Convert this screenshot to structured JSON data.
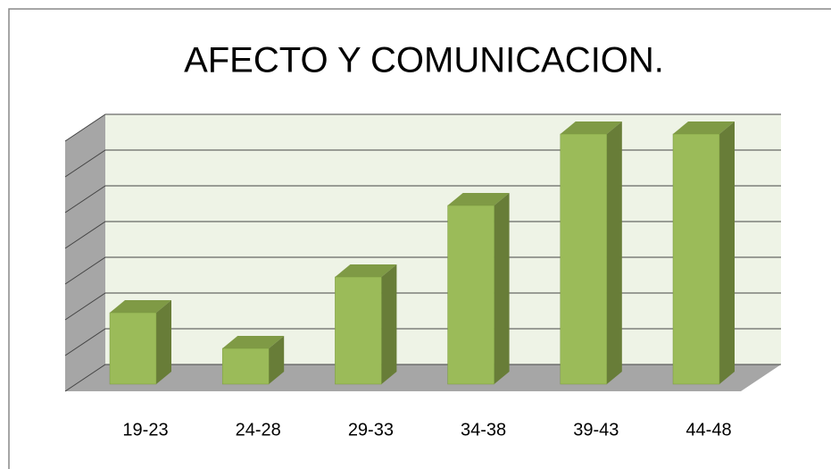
{
  "chart_data": {
    "type": "bar",
    "title": "AFECTO Y  COMUNICACION.",
    "categories": [
      "19-23",
      "24-28",
      "29-33",
      "34-38",
      "39-43",
      "44-48"
    ],
    "values": [
      2,
      1,
      3,
      5,
      7,
      7
    ],
    "color": "#9bbb59",
    "ylim": [
      0,
      7
    ],
    "yticks": [
      0,
      1,
      2,
      3,
      4,
      5,
      6,
      7
    ],
    "grid": true
  }
}
